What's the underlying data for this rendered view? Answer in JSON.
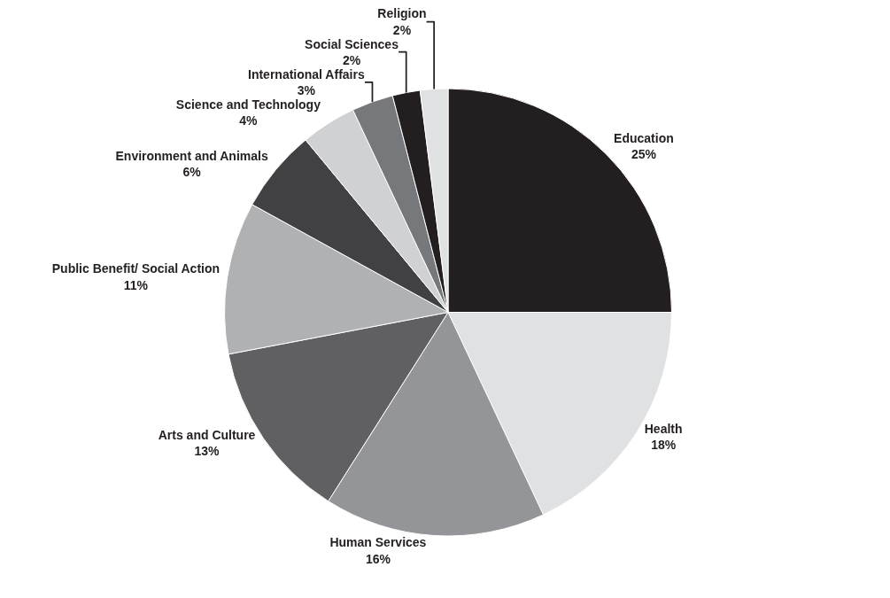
{
  "chart_data": {
    "type": "pie",
    "categories": [
      "Education",
      "Health",
      "Human Services",
      "Arts and Culture",
      "Public Benefit/ Social Action",
      "Environment and Animals",
      "Science and Technology",
      "International Affairs",
      "Social Sciences",
      "Religion"
    ],
    "values": [
      25,
      18,
      16,
      13,
      11,
      6,
      4,
      3,
      2,
      2
    ],
    "value_labels": [
      "25%",
      "18%",
      "16%",
      "13%",
      "11%",
      "6%",
      "4%",
      "3%",
      "2%",
      "2%"
    ],
    "colors": [
      "#231f20",
      "#e0e1e3",
      "#939598",
      "#606062",
      "#b0b1b3",
      "#414143",
      "#d0d1d3",
      "#77787b",
      "#231f20",
      "#e0e1e3"
    ],
    "legend": false
  }
}
